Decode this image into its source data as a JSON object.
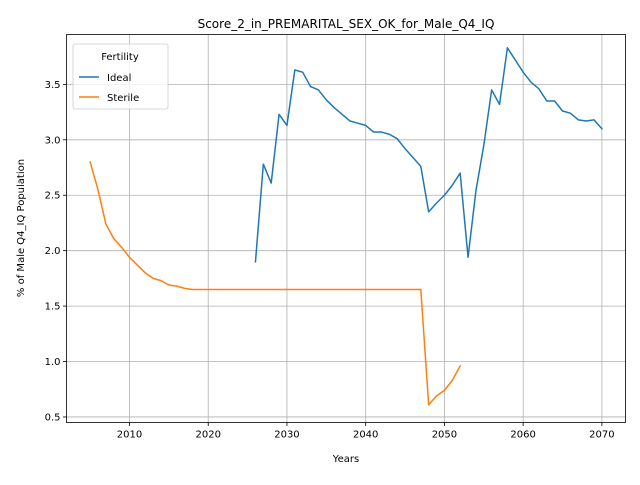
{
  "chart_data": {
    "type": "line",
    "title": "Score_2_in_PREMARITAL_SEX_OK_for_Male_Q4_IQ",
    "xlabel": "Years",
    "ylabel": "% of Male Q4_IQ Population",
    "xlim": [
      2002,
      2073
    ],
    "ylim": [
      0.45,
      3.95
    ],
    "xticks": [
      2010,
      2020,
      2030,
      2040,
      2050,
      2060,
      2070
    ],
    "xtick_labels": [
      "2010",
      "2020",
      "2030",
      "2040",
      "2050",
      "2060",
      "2070"
    ],
    "yticks": [
      0.5,
      1.0,
      1.5,
      2.0,
      2.5,
      3.0,
      3.5
    ],
    "ytick_labels": [
      "0.5",
      "1.0",
      "1.5",
      "2.0",
      "2.5",
      "3.0",
      "3.5"
    ],
    "grid": true,
    "legend": {
      "title": "Fertility",
      "placement": "top-left"
    },
    "series": [
      {
        "name": "Ideal",
        "color": "#1f77b4",
        "x": [
          2026,
          2027,
          2028,
          2029,
          2030,
          2031,
          2032,
          2033,
          2034,
          2035,
          2036,
          2037,
          2038,
          2039,
          2040,
          2041,
          2042,
          2043,
          2044,
          2045,
          2046,
          2047,
          2048,
          2049,
          2050,
          2051,
          2052,
          2053,
          2054,
          2055,
          2056,
          2057,
          2058,
          2059,
          2060,
          2061,
          2062,
          2063,
          2064,
          2065,
          2066,
          2067,
          2068,
          2069,
          2070
        ],
        "y": [
          1.9,
          2.78,
          2.61,
          3.23,
          3.13,
          3.63,
          3.61,
          3.48,
          3.45,
          3.36,
          3.29,
          3.23,
          3.17,
          3.15,
          3.13,
          3.07,
          3.07,
          3.05,
          3.01,
          2.92,
          2.84,
          2.76,
          2.35,
          2.43,
          2.5,
          2.59,
          2.7,
          1.94,
          2.54,
          2.95,
          3.45,
          3.32,
          3.83,
          3.72,
          3.61,
          3.52,
          3.46,
          3.35,
          3.35,
          3.26,
          3.24,
          3.18,
          3.17,
          3.18,
          3.1
        ]
      },
      {
        "name": "Sterile",
        "color": "#ff7f0e",
        "x": [
          2005,
          2006,
          2007,
          2008,
          2009,
          2010,
          2011,
          2012,
          2013,
          2014,
          2015,
          2016,
          2017,
          2018,
          2019,
          2020,
          2021,
          2022,
          2023,
          2024,
          2025,
          2026,
          2027,
          2028,
          2029,
          2030,
          2031,
          2032,
          2033,
          2034,
          2035,
          2036,
          2037,
          2038,
          2039,
          2040,
          2041,
          2042,
          2043,
          2044,
          2045,
          2046,
          2047,
          2048,
          2049,
          2050,
          2051,
          2052
        ],
        "y": [
          2.8,
          2.55,
          2.24,
          2.11,
          2.03,
          1.94,
          1.87,
          1.8,
          1.75,
          1.73,
          1.69,
          1.68,
          1.66,
          1.65,
          1.65,
          1.65,
          1.65,
          1.65,
          1.65,
          1.65,
          1.65,
          1.65,
          1.65,
          1.65,
          1.65,
          1.65,
          1.65,
          1.65,
          1.65,
          1.65,
          1.65,
          1.65,
          1.65,
          1.65,
          1.65,
          1.65,
          1.65,
          1.65,
          1.65,
          1.65,
          1.65,
          1.65,
          1.65,
          0.61,
          0.69,
          0.74,
          0.83,
          0.96
        ]
      }
    ]
  }
}
